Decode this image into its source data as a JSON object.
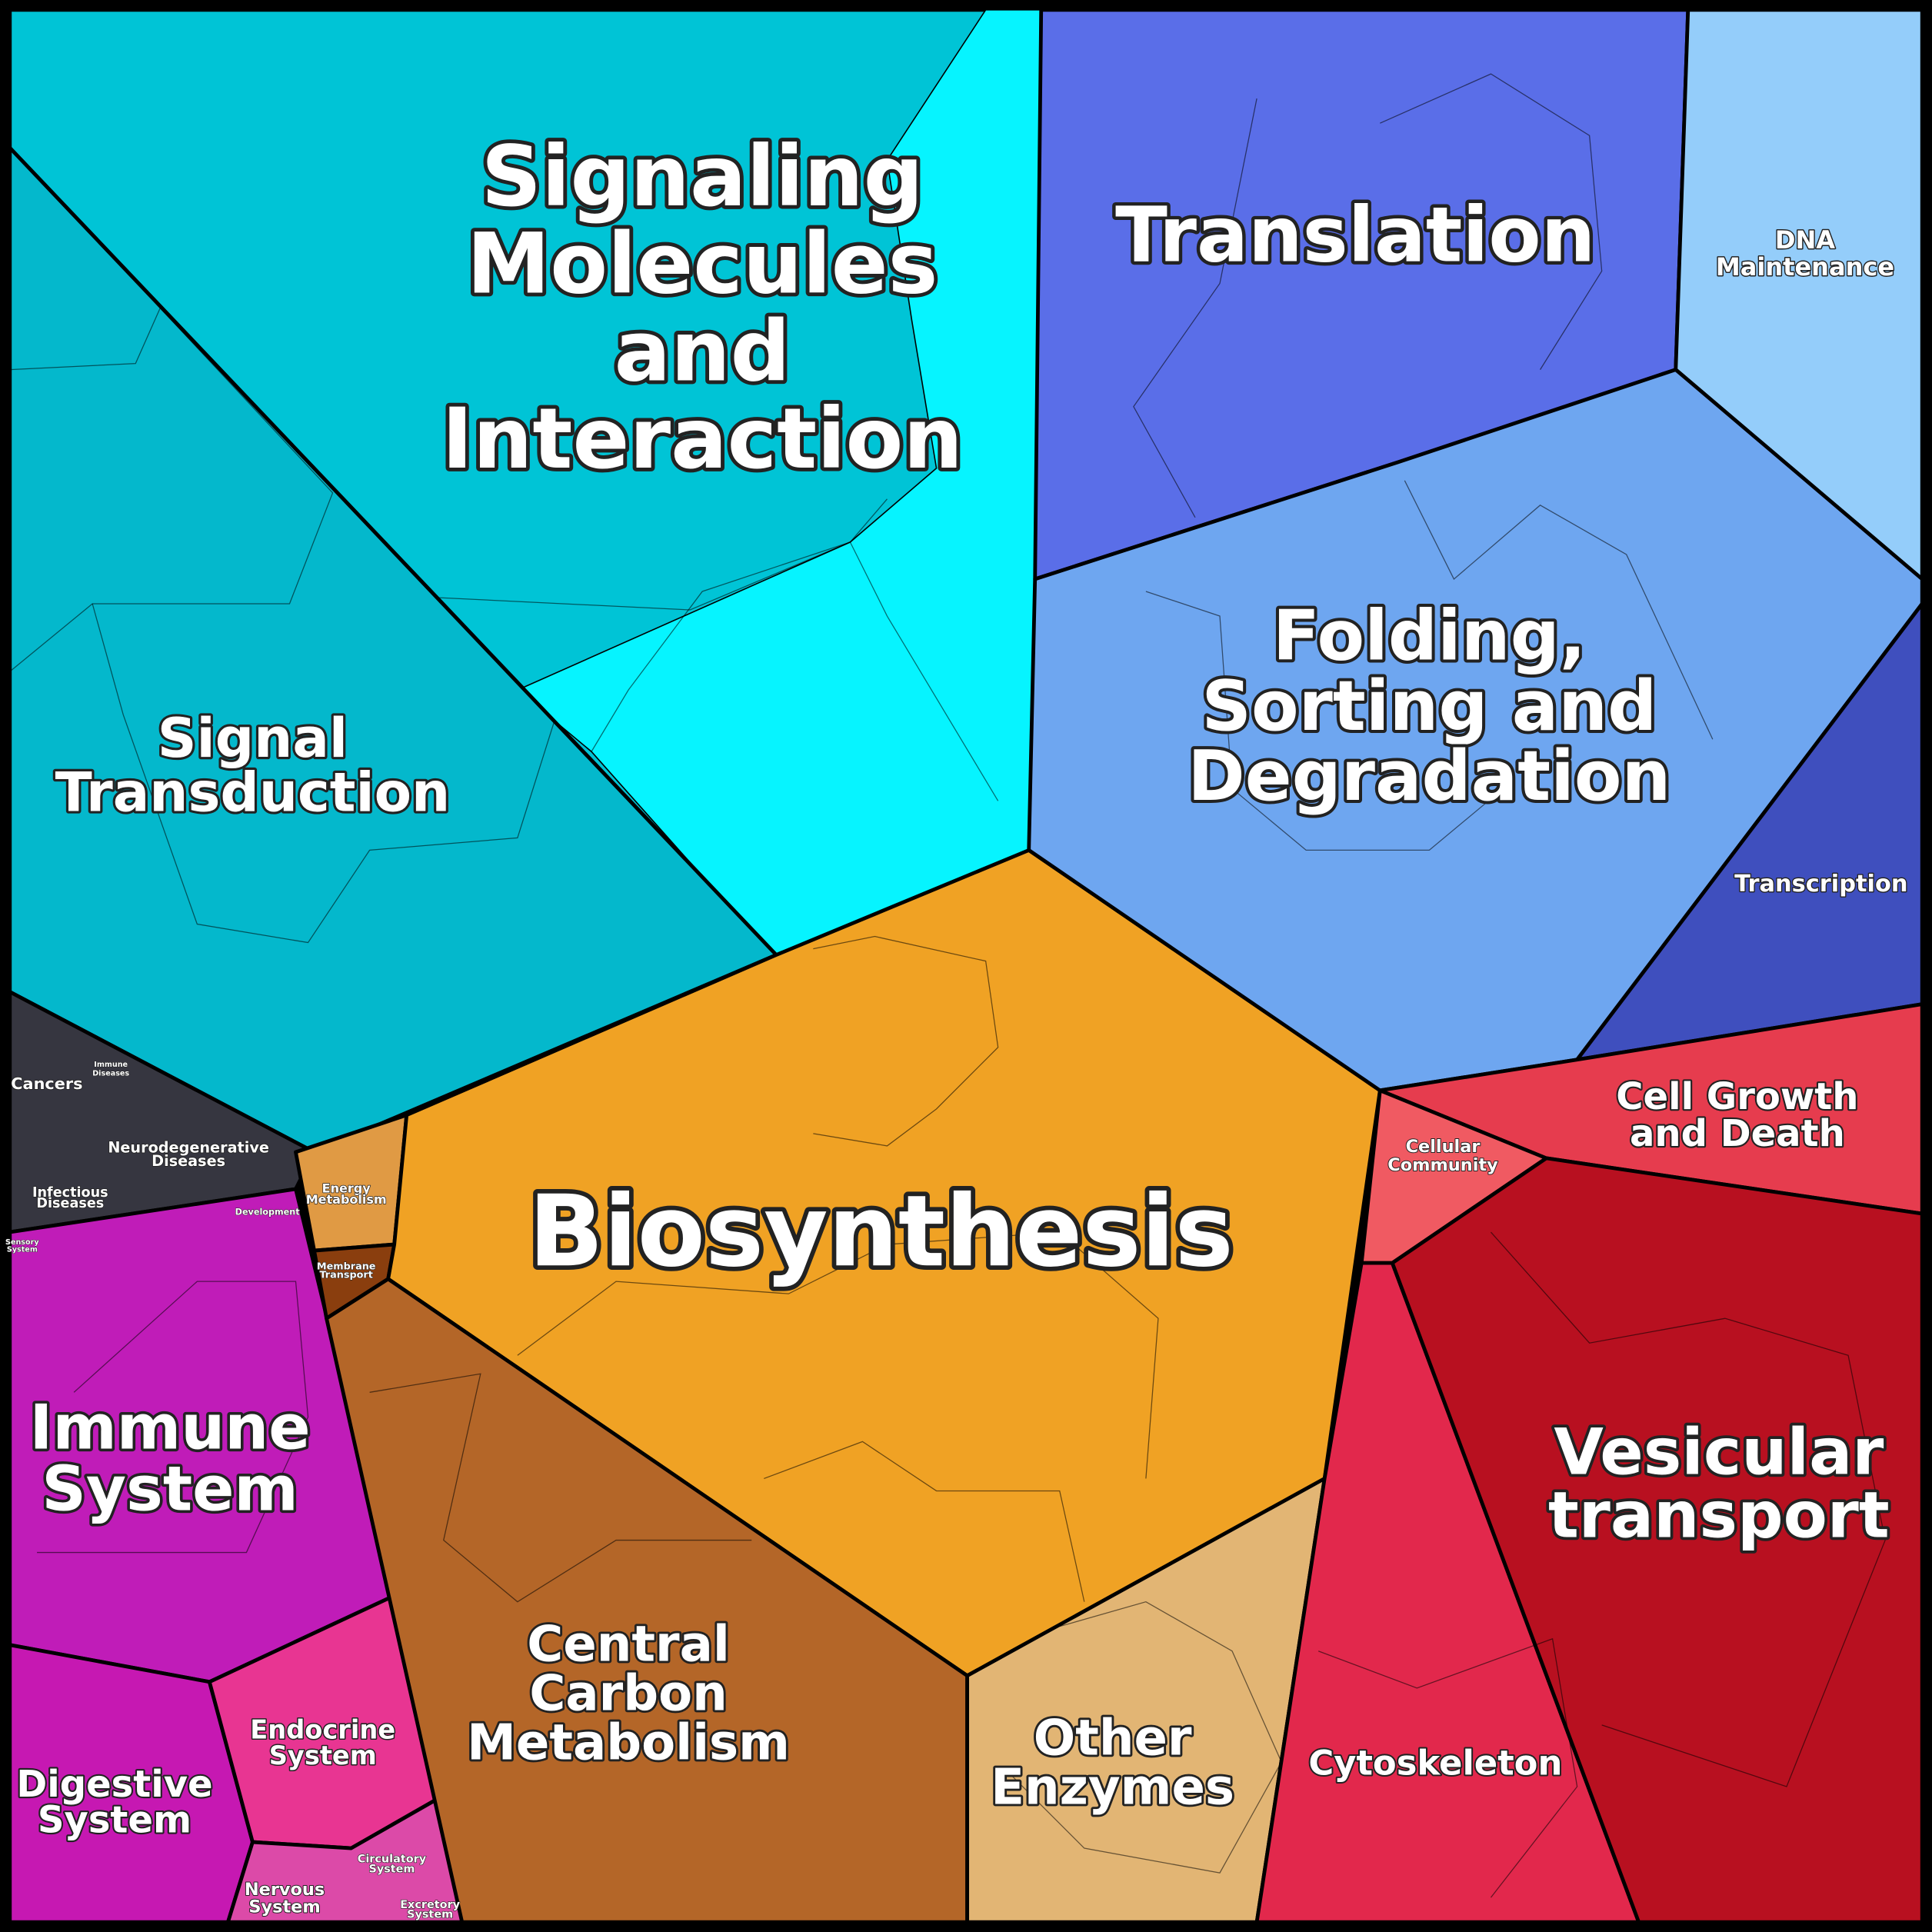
{
  "labels": [
    {
      "lines": [
        "Signaling",
        "Molecules",
        "and",
        "Interaction"
      ]
    },
    {
      "lines": [
        "Translation"
      ]
    },
    {
      "lines": [
        "DNA",
        "Maintenance"
      ]
    },
    {
      "lines": [
        "Folding,",
        "Sorting and",
        "Degradation"
      ]
    },
    {
      "lines": [
        "Transcription"
      ]
    },
    {
      "lines": [
        "Signal",
        "Transduction"
      ]
    },
    {
      "lines": [
        "Cancers"
      ]
    },
    {
      "lines": [
        "Immune",
        "Diseases"
      ]
    },
    {
      "lines": [
        "Neurodegenerative",
        "Diseases"
      ]
    },
    {
      "lines": [
        "Infectious",
        "Diseases"
      ]
    },
    {
      "lines": [
        "Development"
      ]
    },
    {
      "lines": [
        "Sensory",
        "System"
      ]
    },
    {
      "lines": [
        "Energy",
        "Metabolism"
      ]
    },
    {
      "lines": [
        "Membrane",
        "Transport"
      ]
    },
    {
      "lines": [
        "Biosynthesis"
      ]
    },
    {
      "lines": [
        "Immune",
        "System"
      ]
    },
    {
      "lines": [
        "Digestive",
        "System"
      ]
    },
    {
      "lines": [
        "Endocrine",
        "System"
      ]
    },
    {
      "lines": [
        "Circulatory",
        "System"
      ]
    },
    {
      "lines": [
        "Nervous",
        "System"
      ]
    },
    {
      "lines": [
        "Excretory",
        "System"
      ]
    },
    {
      "lines": [
        "Central",
        "Carbon",
        "Metabolism"
      ]
    },
    {
      "lines": [
        "Other",
        "Enzymes"
      ]
    },
    {
      "lines": [
        "Cell Growth",
        "and Death"
      ]
    },
    {
      "lines": [
        "Cellular",
        "Community"
      ]
    },
    {
      "lines": [
        "Cytoskeleton"
      ]
    },
    {
      "lines": [
        "Vesicular",
        "transport"
      ]
    }
  ]
}
